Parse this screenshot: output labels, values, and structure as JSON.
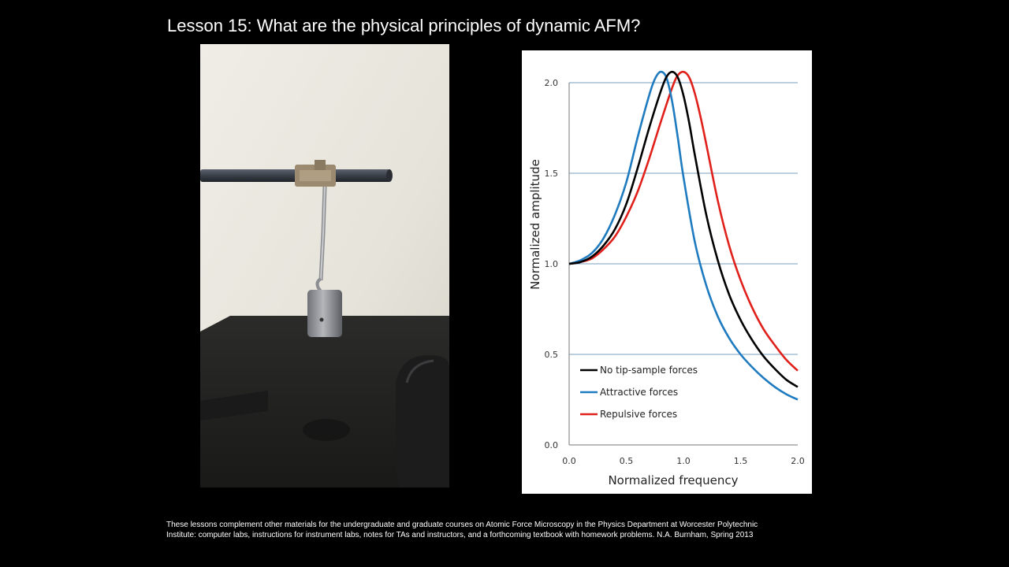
{
  "slide": {
    "title": "Lesson 15:  What are the physical principles of dynamic AFM?",
    "footer_line1": "These lessons complement other materials for the undergraduate and graduate courses on Atomic Force Microscopy in the Physics Department at Worcester Polytechnic",
    "footer_line2": "Institute:  computer labs, instructions for instrument labs, notes for TAs and instructors, and a forthcoming textbook with homework problems.  N.A. Burnham, Spring 2013"
  },
  "photo": {
    "subject": "mass-spring pendulum hanging from a horizontal rod"
  },
  "chart_data": {
    "type": "line",
    "title": "",
    "xlabel": "Normalized frequency",
    "ylabel": "Normalized amplitude",
    "xlim": [
      0.0,
      2.0
    ],
    "ylim": [
      0.0,
      2.0
    ],
    "x_ticks": [
      "0.0",
      "0.5",
      "1.0",
      "1.5",
      "2.0"
    ],
    "y_ticks": [
      "0.0",
      "0.5",
      "1.0",
      "1.5",
      "2.0"
    ],
    "grid": "horizontal",
    "legend_position": "bottom-left",
    "series": [
      {
        "name": "No tip-sample forces",
        "color": "#000000",
        "x": [
          0.0,
          0.1,
          0.2,
          0.3,
          0.4,
          0.5,
          0.6,
          0.7,
          0.8,
          0.85,
          0.9,
          0.95,
          1.0,
          1.05,
          1.1,
          1.2,
          1.3,
          1.4,
          1.5,
          1.6,
          1.7,
          1.8,
          1.9,
          2.0
        ],
        "y": [
          1.0,
          1.01,
          1.04,
          1.1,
          1.19,
          1.33,
          1.53,
          1.75,
          1.95,
          2.03,
          2.06,
          2.03,
          1.93,
          1.78,
          1.6,
          1.27,
          1.02,
          0.83,
          0.69,
          0.58,
          0.49,
          0.42,
          0.36,
          0.32
        ]
      },
      {
        "name": "Attractive forces",
        "color": "#1f7bbf",
        "x": [
          0.0,
          0.1,
          0.2,
          0.3,
          0.4,
          0.5,
          0.6,
          0.7,
          0.75,
          0.8,
          0.85,
          0.9,
          0.95,
          1.0,
          1.1,
          1.2,
          1.3,
          1.4,
          1.5,
          1.6,
          1.7,
          1.8,
          1.9,
          2.0
        ],
        "y": [
          1.0,
          1.02,
          1.06,
          1.14,
          1.27,
          1.45,
          1.7,
          1.93,
          2.02,
          2.06,
          2.03,
          1.9,
          1.7,
          1.48,
          1.12,
          0.88,
          0.71,
          0.59,
          0.5,
          0.43,
          0.37,
          0.32,
          0.28,
          0.25
        ]
      },
      {
        "name": "Repulsive forces",
        "color": "#e0201b",
        "x": [
          0.0,
          0.1,
          0.2,
          0.3,
          0.4,
          0.5,
          0.6,
          0.7,
          0.8,
          0.9,
          0.95,
          1.0,
          1.05,
          1.1,
          1.15,
          1.2,
          1.3,
          1.4,
          1.5,
          1.6,
          1.7,
          1.8,
          1.9,
          2.0
        ],
        "y": [
          1.0,
          1.01,
          1.03,
          1.08,
          1.15,
          1.26,
          1.4,
          1.58,
          1.78,
          1.97,
          2.04,
          2.06,
          2.03,
          1.94,
          1.81,
          1.66,
          1.35,
          1.1,
          0.91,
          0.76,
          0.64,
          0.55,
          0.47,
          0.41
        ]
      }
    ]
  }
}
